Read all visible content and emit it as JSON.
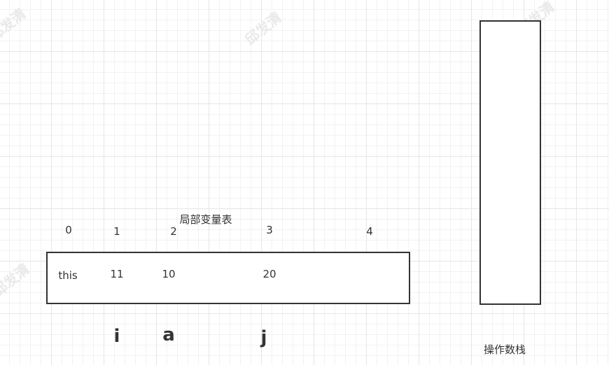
{
  "watermark": "邱发清",
  "local_variable_table": {
    "title": "局部变量表",
    "slot_indices": [
      "0",
      "1",
      "2",
      "3",
      "4"
    ],
    "slot_values": [
      "this",
      "11",
      "10",
      "20"
    ],
    "variable_names": [
      "i",
      "a",
      "j"
    ]
  },
  "operand_stack": {
    "title": "操作数栈"
  },
  "colors": {
    "stroke": "#333333",
    "grid_major": "#e6e6e6",
    "grid_minor": "#f2f2f2",
    "text": "#333333"
  }
}
